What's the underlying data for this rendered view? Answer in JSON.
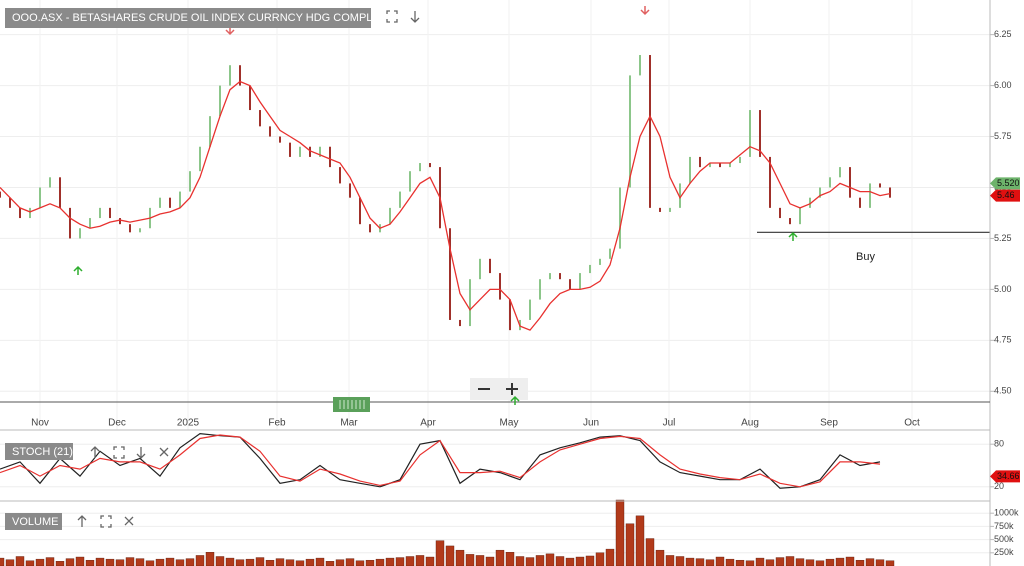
{
  "chart_data": [
    {
      "type": "ohlc",
      "title": "OOO.ASX - BETASHARES CRUDE OIL INDEX CURRNCY HDG COMPLEX ETF",
      "x": [
        0,
        1,
        2,
        3,
        4,
        5,
        6,
        7,
        8,
        9,
        10,
        11,
        12,
        13,
        14,
        15,
        16,
        17,
        18,
        19,
        20,
        21,
        22,
        23,
        24,
        25,
        26,
        27,
        28,
        29,
        30,
        31,
        32,
        33,
        34,
        35,
        36,
        37,
        38,
        39,
        40,
        41,
        42,
        43,
        44,
        45,
        46,
        47,
        48,
        49,
        50,
        51,
        52,
        53,
        54,
        55,
        56,
        57,
        58,
        59,
        60,
        61,
        62,
        63,
        64,
        65,
        66,
        67,
        68,
        69,
        70,
        71,
        72,
        73,
        74,
        75,
        76,
        77,
        78,
        79,
        80,
        81,
        82,
        83,
        84,
        85,
        86,
        87,
        88,
        89
      ],
      "open": [
        5.48,
        5.45,
        5.4,
        5.35,
        5.4,
        5.5,
        5.55,
        5.4,
        5.25,
        5.3,
        5.35,
        5.4,
        5.35,
        5.32,
        5.28,
        5.3,
        5.4,
        5.45,
        5.4,
        5.48,
        5.58,
        5.7,
        5.85,
        6.0,
        6.1,
        6.0,
        5.88,
        5.8,
        5.75,
        5.72,
        5.65,
        5.7,
        5.65,
        5.7,
        5.6,
        5.52,
        5.45,
        5.32,
        5.28,
        5.32,
        5.4,
        5.48,
        5.58,
        5.62,
        5.6,
        5.3,
        4.85,
        4.82,
        5.05,
        5.15,
        5.08,
        4.95,
        4.8,
        4.85,
        4.95,
        5.05,
        5.08,
        5.05,
        5.0,
        5.08,
        5.12,
        5.15,
        5.2,
        5.5,
        6.05,
        6.15,
        5.4,
        5.38,
        5.4,
        5.52,
        5.65,
        5.6,
        5.62,
        5.6,
        5.62,
        5.65,
        5.88,
        5.65,
        5.4,
        5.35,
        5.32,
        5.4,
        5.45,
        5.5,
        5.55,
        5.6,
        5.45,
        5.4,
        5.52,
        5.5
      ],
      "close": [
        5.45,
        5.4,
        5.35,
        5.4,
        5.5,
        5.55,
        5.4,
        5.25,
        5.3,
        5.35,
        5.4,
        5.35,
        5.32,
        5.28,
        5.3,
        5.4,
        5.45,
        5.4,
        5.48,
        5.58,
        5.7,
        5.85,
        6.0,
        6.1,
        6.0,
        5.88,
        5.8,
        5.75,
        5.72,
        5.65,
        5.7,
        5.65,
        5.7,
        5.6,
        5.52,
        5.45,
        5.32,
        5.28,
        5.32,
        5.4,
        5.48,
        5.58,
        5.62,
        5.6,
        5.3,
        4.85,
        4.82,
        5.05,
        5.15,
        5.08,
        4.95,
        4.8,
        4.85,
        4.95,
        5.05,
        5.08,
        5.05,
        5.0,
        5.08,
        5.12,
        5.15,
        5.2,
        5.5,
        6.05,
        6.15,
        5.4,
        5.38,
        5.4,
        5.52,
        5.65,
        5.6,
        5.62,
        5.6,
        5.62,
        5.65,
        5.88,
        5.65,
        5.4,
        5.35,
        5.32,
        5.4,
        5.45,
        5.5,
        5.55,
        5.6,
        5.45,
        5.4,
        5.52,
        5.5,
        5.45
      ],
      "up_color": "#8cc68a",
      "down_color": "#a0302a",
      "moving_average": {
        "color": "#e8312f",
        "values": [
          5.5,
          5.45,
          5.4,
          5.38,
          5.4,
          5.42,
          5.4,
          5.35,
          5.32,
          5.3,
          5.31,
          5.33,
          5.34,
          5.33,
          5.34,
          5.35,
          5.37,
          5.38,
          5.4,
          5.45,
          5.55,
          5.7,
          5.85,
          5.98,
          6.02,
          6.0,
          5.92,
          5.85,
          5.78,
          5.75,
          5.72,
          5.68,
          5.66,
          5.64,
          5.62,
          5.55,
          5.45,
          5.35,
          5.3,
          5.32,
          5.38,
          5.45,
          5.52,
          5.55,
          5.45,
          5.2,
          4.98,
          4.9,
          4.95,
          5.0,
          5.0,
          4.95,
          4.82,
          4.8,
          4.86,
          4.93,
          4.98,
          5.0,
          5.0,
          5.01,
          5.04,
          5.12,
          5.3,
          5.55,
          5.75,
          5.85,
          5.75,
          5.55,
          5.45,
          5.52,
          5.58,
          5.62,
          5.62,
          5.62,
          5.66,
          5.7,
          5.68,
          5.62,
          5.52,
          5.42,
          5.4,
          5.42,
          5.46,
          5.48,
          5.52,
          5.5,
          5.48,
          5.48,
          5.46,
          5.47
        ]
      },
      "xlim": [
        0,
        99
      ],
      "ylim": [
        4.31,
        6.42
      ],
      "xticks": [
        {
          "value": 4.0,
          "label": "Nov"
        },
        {
          "value": 11.7,
          "label": "Dec"
        },
        {
          "value": 18.8,
          "label": "2025"
        },
        {
          "value": 27.7,
          "label": "Feb"
        },
        {
          "value": 34.9,
          "label": "Mar"
        },
        {
          "value": 42.8,
          "label": "Apr"
        },
        {
          "value": 50.9,
          "label": "May"
        },
        {
          "value": 59.1,
          "label": "Jun"
        },
        {
          "value": 66.9,
          "label": "Jul"
        },
        {
          "value": 75.0,
          "label": "Aug"
        },
        {
          "value": 82.9,
          "label": "Sep"
        },
        {
          "value": 91.2,
          "label": "Oct"
        }
      ],
      "yticks": [
        {
          "value": 4.5,
          "label": "4.50"
        },
        {
          "value": 4.75,
          "label": "4.75"
        },
        {
          "value": 5,
          "label": "5.00"
        },
        {
          "value": 5.25,
          "label": "5.25"
        },
        {
          "value": 5.5,
          "label": "5.50"
        },
        {
          "value": 5.75,
          "label": "5.75"
        },
        {
          "value": 6,
          "label": "6.00"
        },
        {
          "value": 6.25,
          "label": "6.25"
        }
      ],
      "grid": true,
      "support_line": 5.28,
      "annotation": "Buy",
      "price_tags": [
        {
          "value": 5.52,
          "label": "5.520",
          "color": "#6db36b"
        },
        {
          "value": 5.46,
          "label": "5.46",
          "color": "#e01010"
        }
      ]
    },
    {
      "type": "line",
      "title": "STOCH (21)",
      "x": [
        0,
        2,
        4,
        6,
        8,
        10,
        12,
        14,
        16,
        18,
        20,
        22,
        24,
        26,
        28,
        30,
        32,
        34,
        36,
        38,
        40,
        42,
        44,
        46,
        48,
        50,
        52,
        54,
        56,
        58,
        60,
        62,
        64,
        66,
        68,
        70,
        72,
        74,
        76,
        78,
        80,
        82,
        84,
        86,
        88
      ],
      "series": [
        {
          "color": "#222222",
          "values": [
            45,
            55,
            25,
            60,
            35,
            70,
            50,
            60,
            35,
            75,
            95,
            92,
            90,
            60,
            25,
            30,
            50,
            30,
            25,
            20,
            30,
            80,
            85,
            25,
            45,
            40,
            30,
            65,
            75,
            82,
            90,
            92,
            85,
            55,
            40,
            35,
            30,
            30,
            45,
            18,
            20,
            30,
            65,
            50,
            55
          ]
        },
        {
          "color": "#e8312f",
          "values": [
            40,
            50,
            35,
            50,
            45,
            60,
            55,
            55,
            45,
            65,
            88,
            93,
            90,
            70,
            35,
            28,
            45,
            38,
            28,
            22,
            28,
            65,
            85,
            40,
            40,
            42,
            33,
            55,
            72,
            80,
            88,
            91,
            88,
            65,
            45,
            38,
            33,
            30,
            38,
            25,
            20,
            27,
            55,
            55,
            52
          ]
        }
      ],
      "xlim": [
        0,
        99
      ],
      "ylim": [
        0,
        100
      ],
      "yticks": [
        20,
        80
      ],
      "price_tags": [
        {
          "value": 34.66,
          "label": "34.66",
          "color": "#e01010"
        }
      ]
    },
    {
      "type": "bar",
      "title": "VOLUME",
      "x": [
        0,
        1,
        2,
        3,
        4,
        5,
        6,
        7,
        8,
        9,
        10,
        11,
        12,
        13,
        14,
        15,
        16,
        17,
        18,
        19,
        20,
        21,
        22,
        23,
        24,
        25,
        26,
        27,
        28,
        29,
        30,
        31,
        32,
        33,
        34,
        35,
        36,
        37,
        38,
        39,
        40,
        41,
        42,
        43,
        44,
        45,
        46,
        47,
        48,
        49,
        50,
        51,
        52,
        53,
        54,
        55,
        56,
        57,
        58,
        59,
        60,
        61,
        62,
        63,
        64,
        65,
        66,
        67,
        68,
        69,
        70,
        71,
        72,
        73,
        74,
        75,
        76,
        77,
        78,
        79,
        80,
        81,
        82,
        83,
        84,
        85,
        86,
        87,
        88,
        89
      ],
      "values": [
        150000,
        120000,
        180000,
        100000,
        130000,
        160000,
        90000,
        140000,
        170000,
        110000,
        150000,
        130000,
        120000,
        160000,
        140000,
        100000,
        130000,
        150000,
        120000,
        140000,
        200000,
        260000,
        180000,
        150000,
        120000,
        130000,
        160000,
        110000,
        140000,
        120000,
        100000,
        130000,
        150000,
        90000,
        120000,
        140000,
        100000,
        110000,
        130000,
        150000,
        160000,
        180000,
        200000,
        170000,
        480000,
        380000,
        300000,
        220000,
        200000,
        170000,
        300000,
        260000,
        180000,
        160000,
        200000,
        230000,
        180000,
        150000,
        170000,
        190000,
        250000,
        320000,
        1250000,
        800000,
        950000,
        520000,
        300000,
        200000,
        180000,
        150000,
        140000,
        120000,
        170000,
        130000,
        110000,
        100000,
        150000,
        120000,
        160000,
        180000,
        140000,
        120000,
        100000,
        130000,
        150000,
        170000,
        110000,
        140000,
        120000,
        100000
      ],
      "color": "#b23a1a",
      "xlim": [
        0,
        99
      ],
      "ylim": [
        0,
        1250000
      ],
      "yticks": [
        {
          "value": 250000,
          "label": "250k"
        },
        {
          "value": 500000,
          "label": "500k"
        },
        {
          "value": 750000,
          "label": "750k"
        },
        {
          "value": 1000000,
          "label": "1000k"
        }
      ]
    }
  ]
}
